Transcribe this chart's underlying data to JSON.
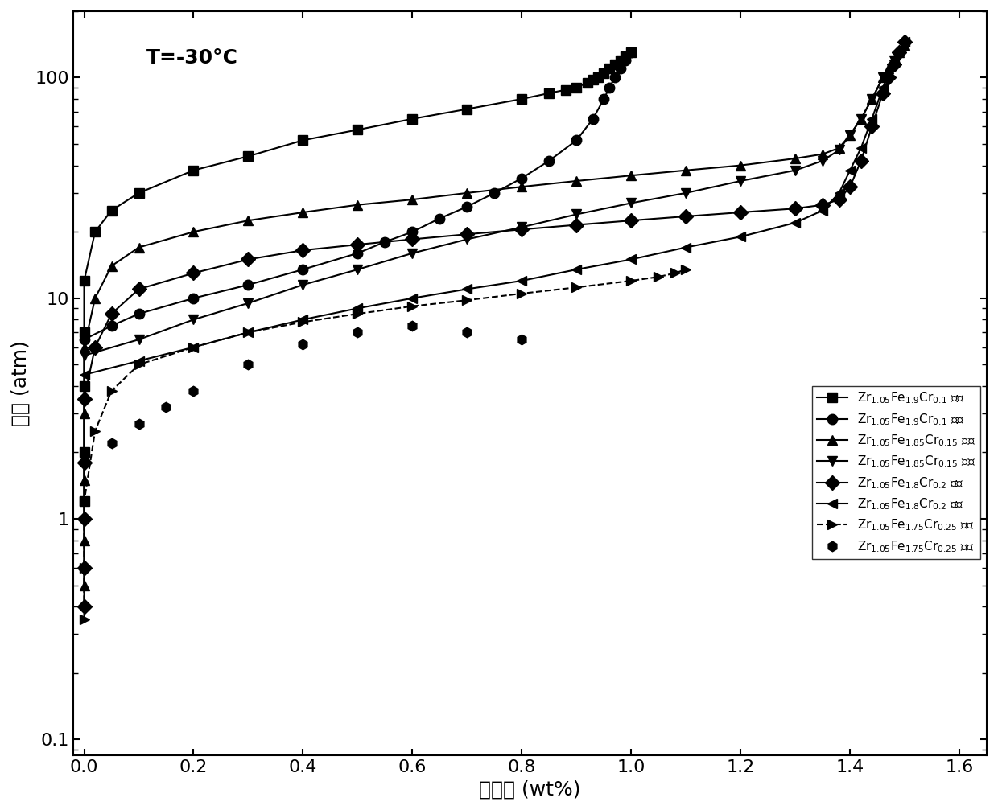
{
  "title_annotation": "T=-30°C",
  "xlabel": "吸氢量 (wt%)",
  "ylabel": "压力 (atm)",
  "xlim": [
    -0.02,
    1.65
  ],
  "ylim_log": [
    0.085,
    200
  ],
  "xticks": [
    0.0,
    0.2,
    0.4,
    0.6,
    0.8,
    1.0,
    1.2,
    1.4,
    1.6
  ],
  "series": [
    {
      "abs_x": [
        0.0,
        0.0,
        0.0,
        0.0,
        0.0,
        0.02,
        0.05,
        0.1,
        0.2,
        0.3,
        0.4,
        0.5,
        0.6,
        0.7,
        0.8,
        0.85,
        0.88,
        0.9,
        0.92,
        0.93,
        0.94,
        0.95,
        0.96,
        0.97,
        0.98,
        0.99,
        1.0
      ],
      "abs_y": [
        1.2,
        2.0,
        4.0,
        7.0,
        12.0,
        20.0,
        25.0,
        30.0,
        38.0,
        44.0,
        52.0,
        58.0,
        65.0,
        72.0,
        80.0,
        85.0,
        88.0,
        90.0,
        95.0,
        98.0,
        100.0,
        105.0,
        110.0,
        115.0,
        120.0,
        125.0,
        130.0
      ],
      "des_x": [
        1.0,
        0.99,
        0.98,
        0.97,
        0.96,
        0.95,
        0.93,
        0.9,
        0.85,
        0.8,
        0.75,
        0.7,
        0.65,
        0.6,
        0.55,
        0.5,
        0.4,
        0.3,
        0.2,
        0.1,
        0.05,
        0.0
      ],
      "des_y": [
        130.0,
        120.0,
        110.0,
        100.0,
        90.0,
        80.0,
        65.0,
        52.0,
        42.0,
        35.0,
        30.0,
        26.0,
        23.0,
        20.0,
        18.0,
        16.0,
        13.5,
        11.5,
        10.0,
        8.5,
        7.5,
        6.5
      ],
      "marker_abs": "s",
      "marker_des": "o",
      "ls_abs": "-",
      "ls_des": "-",
      "label_abs": "Zr$_{1.05}$Fe$_{1.9}$Cr$_{0.1}$ 吸氢",
      "label_des": "Zr$_{1.05}$Fe$_{1.9}$Cr$_{0.1}$ 放氢"
    },
    {
      "abs_x": [
        0.0,
        0.0,
        0.0,
        0.0,
        0.0,
        0.02,
        0.05,
        0.1,
        0.2,
        0.3,
        0.4,
        0.5,
        0.6,
        0.7,
        0.8,
        0.9,
        1.0,
        1.1,
        1.2,
        1.3,
        1.35,
        1.38,
        1.4,
        1.42,
        1.44,
        1.46,
        1.47,
        1.48,
        1.49,
        1.5
      ],
      "abs_y": [
        0.5,
        0.8,
        1.5,
        3.0,
        6.0,
        10.0,
        14.0,
        17.0,
        20.0,
        22.5,
        24.5,
        26.5,
        28.0,
        30.0,
        32.0,
        34.0,
        36.0,
        38.0,
        40.0,
        43.0,
        45.0,
        48.0,
        55.0,
        65.0,
        80.0,
        100.0,
        110.0,
        120.0,
        130.0,
        140.0
      ],
      "des_x": [
        1.5,
        1.48,
        1.46,
        1.44,
        1.42,
        1.4,
        1.38,
        1.35,
        1.3,
        1.2,
        1.1,
        1.0,
        0.9,
        0.8,
        0.7,
        0.6,
        0.5,
        0.4,
        0.3,
        0.2,
        0.1,
        0.0
      ],
      "des_y": [
        140.0,
        120.0,
        100.0,
        80.0,
        65.0,
        55.0,
        47.0,
        42.0,
        38.0,
        34.0,
        30.0,
        27.0,
        24.0,
        21.0,
        18.5,
        16.0,
        13.5,
        11.5,
        9.5,
        8.0,
        6.5,
        5.5
      ],
      "marker_abs": "^",
      "marker_des": "v",
      "ls_abs": "-",
      "ls_des": "-",
      "label_abs": "Zr$_{1.05}$Fe$_{1.85}$Cr$_{0.15}$ 吸氢",
      "label_des": "Zr$_{1.05}$Fe$_{1.85}$Cr$_{0.15}$ 放氢"
    },
    {
      "abs_x": [
        0.0,
        0.0,
        0.0,
        0.0,
        0.0,
        0.02,
        0.05,
        0.1,
        0.2,
        0.3,
        0.4,
        0.5,
        0.6,
        0.7,
        0.8,
        0.9,
        1.0,
        1.1,
        1.2,
        1.3,
        1.35,
        1.38,
        1.4,
        1.42,
        1.44,
        1.46,
        1.47,
        1.48,
        1.49,
        1.5
      ],
      "abs_y": [
        0.4,
        0.6,
        1.0,
        1.8,
        3.5,
        6.0,
        8.5,
        11.0,
        13.0,
        15.0,
        16.5,
        17.5,
        18.5,
        19.5,
        20.5,
        21.5,
        22.5,
        23.5,
        24.5,
        25.5,
        26.5,
        28.0,
        32.0,
        42.0,
        60.0,
        85.0,
        100.0,
        115.0,
        130.0,
        145.0
      ],
      "des_x": [
        1.5,
        1.48,
        1.46,
        1.44,
        1.42,
        1.4,
        1.38,
        1.35,
        1.3,
        1.2,
        1.1,
        1.0,
        0.9,
        0.8,
        0.7,
        0.6,
        0.5,
        0.4,
        0.3,
        0.2,
        0.1,
        0.0
      ],
      "des_y": [
        145.0,
        120.0,
        90.0,
        65.0,
        48.0,
        38.0,
        30.0,
        25.0,
        22.0,
        19.0,
        17.0,
        15.0,
        13.5,
        12.0,
        11.0,
        10.0,
        9.0,
        8.0,
        7.0,
        6.0,
        5.2,
        4.5
      ],
      "marker_abs": "D",
      "marker_des": "<",
      "ls_abs": "-",
      "ls_des": "-",
      "label_abs": "Zr$_{1.05}$Fe$_{1.8}$Cr$_{0.2}$ 吸氢",
      "label_des": "Zr$_{1.05}$Fe$_{1.8}$Cr$_{0.2}$ 放氢"
    },
    {
      "abs_x": [
        0.0,
        0.0,
        0.0,
        0.02,
        0.05,
        0.1,
        0.2,
        0.3,
        0.4,
        0.5,
        0.6,
        0.7,
        0.8,
        0.9,
        1.0,
        1.05,
        1.08,
        1.1
      ],
      "abs_y": [
        0.35,
        0.6,
        1.2,
        2.5,
        3.8,
        5.0,
        6.0,
        7.0,
        7.8,
        8.5,
        9.2,
        9.8,
        10.5,
        11.2,
        12.0,
        12.5,
        13.0,
        13.5
      ],
      "des_x": [
        0.0,
        0.05,
        0.1,
        0.15,
        0.2,
        0.3,
        0.4,
        0.5,
        0.6,
        0.7,
        0.8
      ],
      "des_y": [
        1.8,
        2.2,
        2.7,
        3.2,
        3.8,
        5.0,
        6.2,
        7.0,
        7.5,
        7.0,
        6.5
      ],
      "marker_abs": ">",
      "marker_des": "h",
      "ls_abs": "--",
      "ls_des": "none",
      "label_abs": "Zr$_{1.05}$Fe$_{1.75}$Cr$_{0.25}$ 吸氢",
      "label_des": "Zr$_{1.05}$Fe$_{1.75}$Cr$_{0.25}$ 放氢"
    }
  ]
}
